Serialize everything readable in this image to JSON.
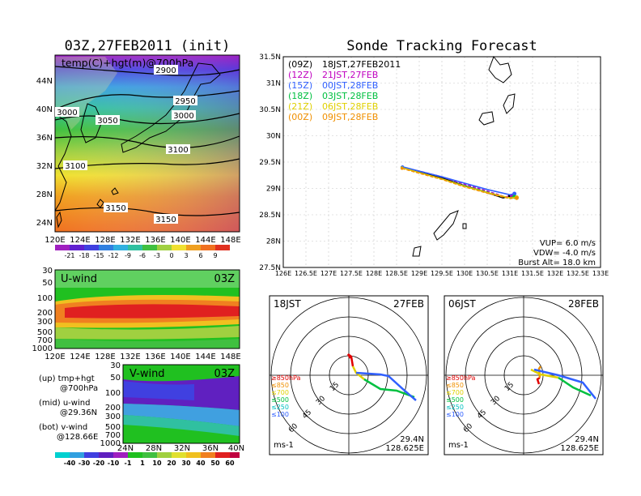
{
  "titles": {
    "left": "03Z,27FEB2011 (init)",
    "right": "Sonde Tracking Forecast"
  },
  "map_panel": {
    "label": "temp(C)+hgt(m)@700hPa",
    "x_ticks": [
      "120E",
      "124E",
      "128E",
      "132E",
      "136E",
      "140E",
      "144E",
      "148E"
    ],
    "y_ticks": [
      "44N",
      "40N",
      "36N",
      "32N",
      "28N",
      "24N"
    ],
    "contour_labels": [
      "2900",
      "2950",
      "3000",
      "3000",
      "3050",
      "3100",
      "3100",
      "3150",
      "3150"
    ],
    "colorbar": [
      "-21",
      "-18",
      "-15",
      "-12",
      "-9",
      "-6",
      "-3",
      "0",
      "3",
      "6",
      "9"
    ]
  },
  "u_panel": {
    "label": "U-wind",
    "time": "03Z",
    "y_ticks": [
      "30",
      "50",
      "100",
      "200",
      "300",
      "500",
      "700",
      "1000"
    ],
    "x_ticks": [
      "120E",
      "124E",
      "128E",
      "132E",
      "136E",
      "140E",
      "144E",
      "148E"
    ]
  },
  "v_panel": {
    "label": "V-wind",
    "time": "03Z",
    "y_ticks": [
      "30",
      "50",
      "100",
      "200",
      "300",
      "500",
      "700",
      "1000"
    ],
    "x_ticks": [
      "24N",
      "28N",
      "32N",
      "36N",
      "40N"
    ]
  },
  "legend_notes": [
    "(up) tmp+hgt",
    "@700hPa",
    "(mid) u-wind",
    "@29.36N",
    "(bot) v-wind",
    "@128.66E"
  ],
  "wind_colorbar": [
    "-40",
    "-30",
    "-20",
    "-10",
    "-1",
    "1",
    "10",
    "20",
    "30",
    "40",
    "50",
    "60"
  ],
  "track_panel": {
    "y_ticks": [
      "31.5N",
      "31N",
      "30.5N",
      "30N",
      "29.5N",
      "29N",
      "28.5N",
      "28N",
      "27.5N"
    ],
    "x_ticks": [
      "126E",
      "126.5E",
      "127E",
      "127.5E",
      "128E",
      "128.5E",
      "129E",
      "129.5E",
      "130E",
      "130.5E",
      "131E",
      "131.5E",
      "132E",
      "132.5E",
      "133E"
    ],
    "legend": [
      {
        "code": "(09Z)",
        "text": "18JST,27FEB2011",
        "color": "#000000"
      },
      {
        "code": "(12Z)",
        "text": "21JST,27FEB",
        "color": "#c000c0"
      },
      {
        "code": "(15Z)",
        "text": "00JST,28FEB",
        "color": "#3060ff"
      },
      {
        "code": "(18Z)",
        "text": "03JST,28FEB",
        "color": "#00c040"
      },
      {
        "code": "(21Z)",
        "text": "06JST,28FEB",
        "color": "#e0d000"
      },
      {
        "code": "(00Z)",
        "text": "09JST,28FEB",
        "color": "#f09000"
      }
    ],
    "params": [
      "VUP= 6.0 m/s",
      "VDW= -4.0 m/s",
      "Burst Alt= 18.0 km"
    ]
  },
  "chart_data": {
    "type": "line",
    "xlim": [
      126,
      133
    ],
    "ylim": [
      27.5,
      31.5
    ],
    "series": [
      {
        "name": "18JST,27FEB2011",
        "color": "#000000",
        "x": [
          128.62,
          129.0,
          129.5,
          130.0,
          130.5,
          130.85,
          131.0
        ],
        "y": [
          29.4,
          29.32,
          29.2,
          29.05,
          28.92,
          28.82,
          28.85
        ]
      },
      {
        "name": "21JST,27FEB",
        "color": "#c000c0",
        "x": [
          128.63,
          129.0,
          129.5,
          130.0,
          130.5,
          130.9,
          131.05
        ],
        "y": [
          29.4,
          29.33,
          29.22,
          29.08,
          28.95,
          28.84,
          28.86
        ]
      },
      {
        "name": "00JST,28FEB",
        "color": "#3060ff",
        "x": [
          128.63,
          129.0,
          129.5,
          130.0,
          130.5,
          131.0,
          131.1
        ],
        "y": [
          29.41,
          29.33,
          29.22,
          29.1,
          28.98,
          28.88,
          28.9
        ]
      },
      {
        "name": "03JST,28FEB",
        "color": "#00c040",
        "x": [
          128.62,
          129.0,
          129.5,
          130.0,
          130.5,
          130.95,
          131.1
        ],
        "y": [
          29.39,
          29.3,
          29.18,
          29.05,
          28.93,
          28.82,
          28.84
        ]
      },
      {
        "name": "06JST,28FEB",
        "color": "#e0d000",
        "x": [
          128.62,
          129.0,
          129.5,
          130.0,
          130.5,
          131.0,
          131.15
        ],
        "y": [
          29.39,
          29.3,
          29.18,
          29.04,
          28.92,
          28.82,
          28.83
        ]
      },
      {
        "name": "09JST,28FEB",
        "color": "#f09000",
        "x": [
          128.62,
          129.0,
          129.5,
          130.0,
          130.5,
          131.0,
          131.15
        ],
        "y": [
          29.38,
          29.29,
          29.17,
          29.03,
          28.91,
          28.81,
          28.82
        ]
      }
    ]
  },
  "hodographs": [
    {
      "left": "18JST",
      "right": "27FEB",
      "lat": "29.4N",
      "lon": "128.625E",
      "unit": "ms-1"
    },
    {
      "left": "06JST",
      "right": "28FEB",
      "lat": "29.4N",
      "lon": "128.625E",
      "unit": "ms-1"
    }
  ],
  "hodo_rings": [
    "15",
    "30",
    "45",
    "60"
  ],
  "hodo_levels": [
    {
      "label": "≥850hPa",
      "color": "#e00000"
    },
    {
      "label": "≤850",
      "color": "#f09000"
    },
    {
      "label": "≤700",
      "color": "#e0d000"
    },
    {
      "label": "≤500",
      "color": "#00c040"
    },
    {
      "label": "≤250",
      "color": "#00c0c0"
    },
    {
      "label": "≤100",
      "color": "#3060ff"
    }
  ]
}
